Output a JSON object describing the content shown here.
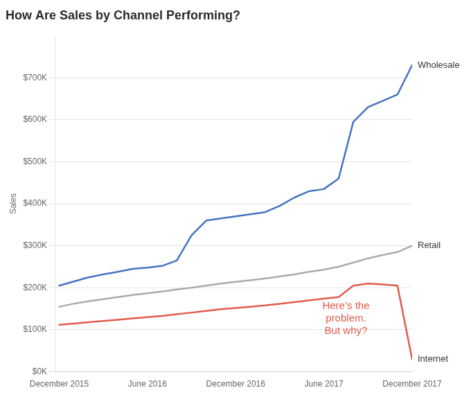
{
  "chart_data": {
    "type": "line",
    "title": "How Are Sales by Channel Performing?",
    "y_label": "Sales",
    "x": [
      0,
      1,
      2,
      3,
      4,
      5,
      6,
      7,
      8,
      9,
      10,
      11,
      12,
      13,
      14,
      15,
      16,
      17,
      18,
      19,
      20,
      21,
      22,
      23,
      24
    ],
    "series": [
      {
        "name": "Wholesale",
        "color": "#4472C4",
        "values": [
          205000,
          215000,
          225000,
          232000,
          238000,
          245000,
          248000,
          252000,
          265000,
          325000,
          360000,
          365000,
          370000,
          375000,
          380000,
          395000,
          415000,
          430000,
          435000,
          460000,
          595000,
          630000,
          645000,
          660000,
          730000
        ]
      },
      {
        "name": "Retail",
        "color": "#aaaaaa",
        "values": [
          155000,
          162000,
          168000,
          173000,
          178000,
          183000,
          187000,
          191000,
          196000,
          200000,
          205000,
          210000,
          214000,
          218000,
          222000,
          227000,
          232000,
          238000,
          243000,
          250000,
          260000,
          270000,
          278000,
          285000,
          300000
        ]
      },
      {
        "name": "Internet",
        "color": "#e05c4b",
        "values": [
          112000,
          115000,
          118000,
          121000,
          124000,
          127000,
          130000,
          133000,
          137000,
          141000,
          145000,
          149000,
          152000,
          155000,
          158000,
          162000,
          166000,
          170000,
          174000,
          178000,
          205000,
          210000,
          208000,
          205000,
          30000
        ]
      }
    ],
    "xlim": [
      -0.3,
      24
    ],
    "xticks": [
      {
        "value": 0,
        "label": "December 2015"
      },
      {
        "value": 6,
        "label": "June 2016"
      },
      {
        "value": 12,
        "label": "December 2016"
      },
      {
        "value": 18,
        "label": "June 2017"
      },
      {
        "value": 24,
        "label": "December 2017"
      }
    ],
    "ylim": [
      0,
      800000
    ],
    "yticks": [
      {
        "value": 0,
        "label": "$0K"
      },
      {
        "value": 100000,
        "label": "$100K"
      },
      {
        "value": 200000,
        "label": "$200K"
      },
      {
        "value": 300000,
        "label": "$300K"
      },
      {
        "value": 400000,
        "label": "$400K"
      },
      {
        "value": 500000,
        "label": "$500K"
      },
      {
        "value": 600000,
        "label": "$600K"
      },
      {
        "value": 700000,
        "label": "$700K"
      }
    ],
    "grid": true,
    "annotations": [
      {
        "text": "Here’s the\nproblem.\nBut why?",
        "x": 19.5,
        "y": 175000,
        "color": "#e05c4b"
      }
    ]
  }
}
